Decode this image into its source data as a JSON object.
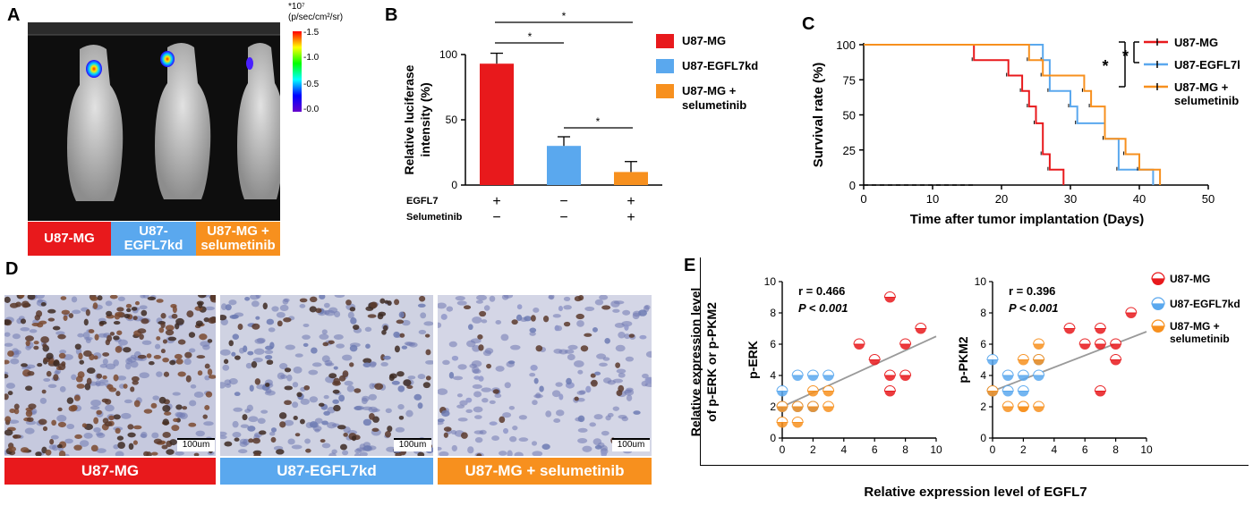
{
  "colors": {
    "red": "#e8191c",
    "blue": "#5aa8ee",
    "orange": "#f7901e",
    "light_orange": "#f8c98a",
    "axis": "#000000",
    "regression": "#9a9a9a"
  },
  "panel_a": {
    "letter": "A",
    "scale_unit": "*10⁷",
    "scale_subunit": "(p/sec/cm²/sr)",
    "scale_ticks": [
      "-1.5",
      "-1.0",
      "-0.5",
      "-0.0"
    ],
    "groups": [
      "U87-MG",
      "U87-EGFL7kd",
      "U87-MG + selumetinib"
    ]
  },
  "panel_b": {
    "letter": "B",
    "legend": [
      "U87-MG",
      "U87-EGFL7kd",
      "U87-MG + selumetinib"
    ],
    "row_labels": [
      "EGFL7",
      "Selumetinib"
    ],
    "row_egfl7": [
      "+",
      "−",
      "+"
    ],
    "row_selumetinib": [
      "−",
      "−",
      "+"
    ],
    "sig_marks": [
      "*",
      "*",
      "*"
    ]
  },
  "panel_c": {
    "letter": "C",
    "legend": [
      "U87-MG",
      "U87-EGFL7kd",
      "U87-MG + selumetinib"
    ],
    "sig_marks": [
      "*",
      "*"
    ]
  },
  "panel_d": {
    "letter": "D",
    "scalebar": "100um",
    "groups": [
      "U87-MG",
      "U87-EGFL7kd",
      "U87-MG + selumetinib"
    ]
  },
  "panel_e": {
    "letter": "E",
    "ylabel_1": "Relative expression level",
    "ylabel_2": "of p-ERK or p-PKM2",
    "xlabel": "Relative expression level of EGFL7",
    "legend": [
      "U87-MG",
      "U87-EGFL7kd",
      "U87-MG + selumetinib"
    ],
    "erk_r": "r = 0.466",
    "erk_p": "P < 0.001",
    "pkm2_r": "r = 0.396",
    "pkm2_p": "P < 0.001"
  },
  "chart_data": [
    {
      "type": "bar",
      "ylabel": "Relative luciferase intensity (%)",
      "categories": [
        "U87-MG",
        "U87-EGFL7kd",
        "U87-MG + selumetinib"
      ],
      "values": [
        93,
        30,
        10
      ],
      "errors": [
        8,
        7,
        8
      ],
      "ylim": [
        0,
        100
      ],
      "yticks": [
        0,
        50,
        100
      ]
    },
    {
      "type": "line",
      "xlabel": "Time after tumor implantation (Days)",
      "ylabel": "Survival rate (%)",
      "xlim": [
        0,
        50
      ],
      "ylim": [
        0,
        100
      ],
      "xticks": [
        0,
        10,
        20,
        30,
        40,
        50
      ],
      "yticks": [
        0,
        25,
        50,
        75,
        100
      ],
      "series": [
        {
          "name": "U87-MG",
          "steps": [
            [
              0,
              100
            ],
            [
              16,
              100
            ],
            [
              16,
              89
            ],
            [
              21,
              89
            ],
            [
              21,
              78
            ],
            [
              23,
              78
            ],
            [
              23,
              67
            ],
            [
              24,
              67
            ],
            [
              24,
              56
            ],
            [
              25,
              56
            ],
            [
              25,
              44
            ],
            [
              26,
              44
            ],
            [
              26,
              22
            ],
            [
              27,
              22
            ],
            [
              27,
              11
            ],
            [
              29,
              11
            ],
            [
              29,
              0
            ]
          ]
        },
        {
          "name": "U87-EGFL7kd",
          "steps": [
            [
              0,
              100
            ],
            [
              26,
              100
            ],
            [
              26,
              89
            ],
            [
              27,
              89
            ],
            [
              27,
              67
            ],
            [
              30,
              67
            ],
            [
              30,
              56
            ],
            [
              31,
              56
            ],
            [
              31,
              44
            ],
            [
              35,
              44
            ],
            [
              35,
              33
            ],
            [
              37,
              33
            ],
            [
              37,
              11
            ],
            [
              42,
              11
            ],
            [
              42,
              0
            ]
          ]
        },
        {
          "name": "U87-MG + selumetinib",
          "steps": [
            [
              0,
              100
            ],
            [
              24,
              100
            ],
            [
              24,
              89
            ],
            [
              26,
              89
            ],
            [
              26,
              78
            ],
            [
              32,
              78
            ],
            [
              32,
              67
            ],
            [
              33,
              67
            ],
            [
              33,
              56
            ],
            [
              35,
              56
            ],
            [
              35,
              33
            ],
            [
              38,
              33
            ],
            [
              38,
              22
            ],
            [
              40,
              22
            ],
            [
              40,
              11
            ],
            [
              43,
              11
            ],
            [
              43,
              0
            ]
          ]
        }
      ],
      "reference_line": {
        "from": [
          0,
          0
        ],
        "to": [
          16,
          0
        ],
        "style": "dashed"
      }
    },
    {
      "type": "scatter",
      "ylabel": "p-ERK",
      "xlim": [
        0,
        10
      ],
      "ylim": [
        0,
        10
      ],
      "xticks": [
        0,
        2,
        4,
        6,
        8,
        10
      ],
      "yticks": [
        0,
        2,
        4,
        6,
        8,
        10
      ],
      "series": [
        {
          "name": "U87-MG",
          "points": [
            [
              5,
              6
            ],
            [
              6,
              5
            ],
            [
              7,
              9
            ],
            [
              7,
              3
            ],
            [
              7,
              4
            ],
            [
              8,
              6
            ],
            [
              8,
              4
            ],
            [
              9,
              7
            ]
          ]
        },
        {
          "name": "U87-EGFL7kd",
          "points": [
            [
              0,
              2
            ],
            [
              0,
              3
            ],
            [
              1,
              4
            ],
            [
              1,
              2
            ],
            [
              2,
              4
            ],
            [
              2,
              2
            ],
            [
              3,
              4
            ],
            [
              2,
              2
            ]
          ]
        },
        {
          "name": "U87-MG + selumetinib",
          "points": [
            [
              0,
              1
            ],
            [
              1,
              1
            ],
            [
              1,
              2
            ],
            [
              2,
              3
            ],
            [
              2,
              2
            ],
            [
              3,
              3
            ],
            [
              3,
              2
            ],
            [
              0,
              2
            ]
          ]
        }
      ],
      "regression": {
        "from": [
          0,
          2
        ],
        "to": [
          10,
          6.5
        ]
      }
    },
    {
      "type": "scatter",
      "ylabel": "p-PKM2",
      "xlim": [
        0,
        10
      ],
      "ylim": [
        0,
        10
      ],
      "xticks": [
        0,
        2,
        4,
        6,
        8,
        10
      ],
      "yticks": [
        0,
        2,
        4,
        6,
        8,
        10
      ],
      "series": [
        {
          "name": "U87-MG",
          "points": [
            [
              5,
              7
            ],
            [
              6,
              6
            ],
            [
              7,
              7
            ],
            [
              7,
              6
            ],
            [
              7,
              3
            ],
            [
              8,
              6
            ],
            [
              8,
              5
            ],
            [
              9,
              8
            ]
          ]
        },
        {
          "name": "U87-EGFL7kd",
          "points": [
            [
              0,
              5
            ],
            [
              0,
              3
            ],
            [
              1,
              4
            ],
            [
              1,
              3
            ],
            [
              2,
              4
            ],
            [
              2,
              3
            ],
            [
              3,
              5
            ],
            [
              3,
              4
            ]
          ]
        },
        {
          "name": "U87-MG + selumetinib",
          "points": [
            [
              0,
              3
            ],
            [
              1,
              2
            ],
            [
              2,
              5
            ],
            [
              2,
              2
            ],
            [
              3,
              6
            ],
            [
              3,
              2
            ],
            [
              2,
              2
            ],
            [
              3,
              5
            ]
          ]
        }
      ],
      "regression": {
        "from": [
          0,
          3
        ],
        "to": [
          10,
          6.8
        ]
      }
    }
  ]
}
